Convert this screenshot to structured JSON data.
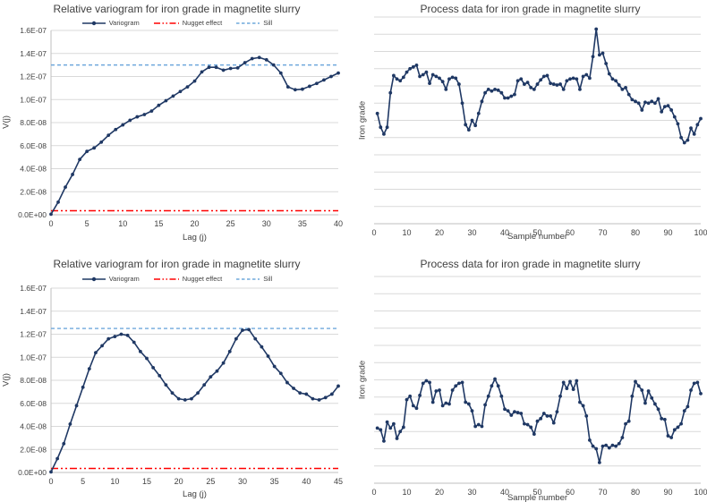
{
  "page": {
    "background": "#ffffff"
  },
  "colors": {
    "series": "#1f3864",
    "nugget": "#ff0000",
    "sill": "#6fa8dc",
    "gridline": "#d9d9d9",
    "axis": "#bfbfbf",
    "text": "#404040"
  },
  "chart_data": [
    {
      "type": "line",
      "variant": "variogram",
      "title": "Relative variogram for iron grade in magnetite slurry",
      "xlabel": "Lag (j)",
      "ylabel": "V(j)",
      "legend": [
        "Variogram",
        "Nugget effect",
        "Sill"
      ],
      "x_ticks": [
        0,
        5,
        10,
        15,
        20,
        25,
        30,
        35,
        40
      ],
      "xlim": [
        0,
        40
      ],
      "y_tick_labels": [
        "0.0E+00",
        "2.0E-08",
        "4.0E-08",
        "6.0E-08",
        "8.0E-08",
        "1.0E-07",
        "1.2E-07",
        "1.4E-07",
        "1.6E-07"
      ],
      "ylim": [
        0,
        16
      ],
      "y_value_scale": "1e-8",
      "grid": true,
      "legend_position": "top",
      "sill": 13.0,
      "nugget": 0.35,
      "x_start": 0,
      "values": [
        0.05,
        1.1,
        2.4,
        3.5,
        4.8,
        5.5,
        5.8,
        6.3,
        6.9,
        7.4,
        7.8,
        8.2,
        8.5,
        8.7,
        9.0,
        9.5,
        9.9,
        10.3,
        10.7,
        11.1,
        11.6,
        12.4,
        12.8,
        12.8,
        12.55,
        12.7,
        12.75,
        13.2,
        13.55,
        13.65,
        13.45,
        13.0,
        12.3,
        11.1,
        10.85,
        10.9,
        11.15,
        11.4,
        11.7,
        12.0,
        12.3
      ]
    },
    {
      "type": "line",
      "variant": "process",
      "title": "Process data for iron grade in magnetite slurry",
      "xlabel": "Sample number",
      "ylabel": "Iron grade",
      "legend": [],
      "x_ticks": [
        0,
        10,
        20,
        30,
        40,
        50,
        60,
        70,
        80,
        90,
        100
      ],
      "xlim": [
        0,
        100
      ],
      "y_tick_labels": [],
      "ylim": [
        0,
        12
      ],
      "gridline_intervals": 12,
      "grid": true,
      "y_axis_numbers_hidden": true,
      "x_start": 1,
      "values": [
        6.4,
        5.6,
        5.2,
        5.6,
        7.6,
        8.6,
        8.4,
        8.3,
        8.5,
        8.8,
        9.0,
        9.1,
        9.2,
        8.55,
        8.65,
        8.8,
        8.15,
        8.65,
        8.55,
        8.45,
        8.25,
        7.8,
        8.4,
        8.5,
        8.45,
        8.1,
        7.0,
        5.75,
        5.45,
        6.0,
        5.7,
        6.4,
        7.1,
        7.6,
        7.8,
        7.7,
        7.8,
        7.75,
        7.6,
        7.3,
        7.3,
        7.4,
        7.5,
        8.3,
        8.4,
        8.1,
        8.2,
        7.9,
        7.8,
        8.1,
        8.35,
        8.55,
        8.6,
        8.15,
        8.1,
        8.05,
        8.1,
        7.8,
        8.3,
        8.4,
        8.45,
        8.4,
        7.8,
        8.55,
        8.65,
        8.45,
        9.7,
        11.3,
        9.8,
        9.9,
        9.3,
        8.7,
        8.4,
        8.3,
        8.05,
        7.8,
        7.9,
        7.5,
        7.2,
        7.1,
        7.0,
        6.6,
        7.05,
        7.0,
        7.1,
        7.0,
        7.25,
        6.5,
        6.8,
        6.85,
        6.6,
        6.2,
        5.8,
        5.0,
        4.7,
        4.85,
        5.55,
        5.2,
        5.75,
        6.1
      ]
    },
    {
      "type": "line",
      "variant": "variogram",
      "title": "Relative variogram for iron grade in magnetite slurry",
      "xlabel": "Lag (j)",
      "ylabel": "V(j)",
      "legend": [
        "Variogram",
        "Nugget effect",
        "Sill"
      ],
      "x_ticks": [
        0,
        5,
        10,
        15,
        20,
        25,
        30,
        35,
        40,
        45
      ],
      "xlim": [
        0,
        45
      ],
      "y_tick_labels": [
        "0.0E+00",
        "2.0E-08",
        "4.0E-08",
        "6.0E-08",
        "8.0E-08",
        "1.0E-07",
        "1.2E-07",
        "1.4E-07",
        "1.6E-07"
      ],
      "ylim": [
        0,
        16
      ],
      "y_value_scale": "1e-8",
      "grid": true,
      "legend_position": "top",
      "sill": 12.5,
      "nugget": 0.35,
      "x_start": 0,
      "values": [
        0.05,
        1.2,
        2.5,
        4.2,
        5.8,
        7.4,
        9.0,
        10.4,
        11.0,
        11.6,
        11.8,
        12.0,
        11.9,
        11.3,
        10.5,
        9.9,
        9.1,
        8.4,
        7.6,
        6.9,
        6.4,
        6.3,
        6.4,
        6.9,
        7.6,
        8.3,
        8.8,
        9.5,
        10.5,
        11.6,
        12.35,
        12.4,
        11.6,
        10.9,
        10.1,
        9.2,
        8.6,
        7.8,
        7.3,
        6.9,
        6.8,
        6.4,
        6.3,
        6.5,
        6.8,
        7.5
      ]
    },
    {
      "type": "line",
      "variant": "process",
      "title": "Process data for iron grade in magnetite slurry",
      "xlabel": "Sample number",
      "ylabel": "Iron grade",
      "legend": [],
      "x_ticks": [
        0,
        10,
        20,
        30,
        40,
        50,
        60,
        70,
        80,
        90,
        100
      ],
      "xlim": [
        0,
        100
      ],
      "y_tick_labels": [],
      "ylim": [
        0,
        12
      ],
      "gridline_intervals": 12,
      "grid": true,
      "y_axis_numbers_hidden": true,
      "x_start": 1,
      "values": [
        3.2,
        3.1,
        2.45,
        3.55,
        3.2,
        3.45,
        2.6,
        3.0,
        3.25,
        4.85,
        5.05,
        4.5,
        4.35,
        5.1,
        5.8,
        5.95,
        5.85,
        4.7,
        5.35,
        5.4,
        4.5,
        4.65,
        4.6,
        5.4,
        5.65,
        5.8,
        5.85,
        4.7,
        4.6,
        4.2,
        3.3,
        3.4,
        3.3,
        4.55,
        5.05,
        5.65,
        6.05,
        5.65,
        5.05,
        4.3,
        4.2,
        3.95,
        4.15,
        4.1,
        4.05,
        3.45,
        3.4,
        3.25,
        2.85,
        3.6,
        3.75,
        4.05,
        3.9,
        3.9,
        3.5,
        4.15,
        5.05,
        5.85,
        5.5,
        5.9,
        5.45,
        5.95,
        4.7,
        4.5,
        3.9,
        2.5,
        2.15,
        2.0,
        1.2,
        2.15,
        2.2,
        2.05,
        2.2,
        2.15,
        2.3,
        2.65,
        3.45,
        3.6,
        5.05,
        5.9,
        5.65,
        5.4,
        4.65,
        5.35,
        4.95,
        4.6,
        4.3,
        3.75,
        3.7,
        2.75,
        2.65,
        3.1,
        3.25,
        3.45,
        4.2,
        4.45,
        5.4,
        5.8,
        5.85,
        5.2
      ]
    }
  ]
}
